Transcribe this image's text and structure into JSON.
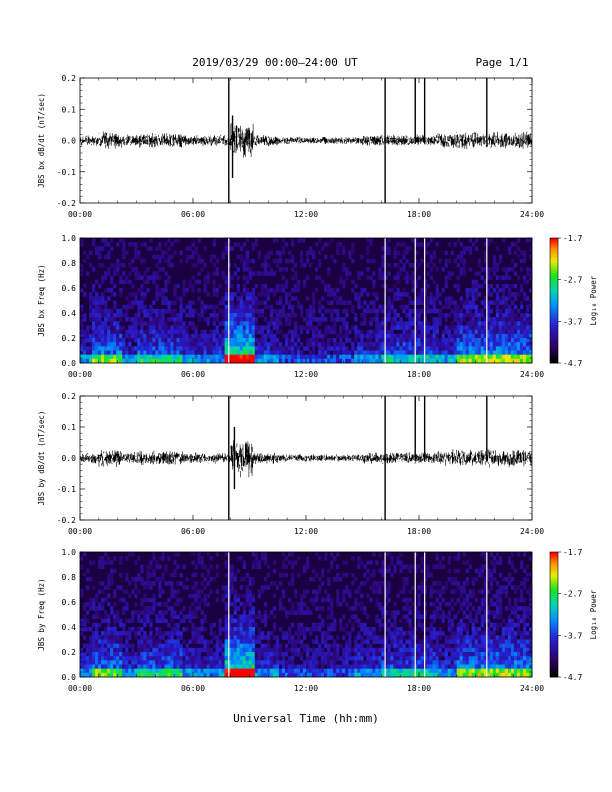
{
  "header": {
    "title": "2019/03/29  00:00–24:00 UT",
    "page": "Page 1/1"
  },
  "xaxis": {
    "label": "Universal Time (hh:mm)",
    "ticks": [
      "00:00",
      "06:00",
      "12:00",
      "18:00",
      "24:00"
    ]
  },
  "colorbar": {
    "label": "Log₁₀ Power",
    "ticks": [
      "-1.7",
      "-2.7",
      "-3.7",
      "-4.7"
    ],
    "colors": [
      "#000000",
      "#2b0060",
      "#1a22d6",
      "#00a8ff",
      "#00d8a0",
      "#20e020",
      "#e8e800",
      "#ff8800",
      "#ff0000"
    ]
  },
  "chart_data": [
    {
      "type": "line",
      "ylabel": "JBS bx dB/dt (nT/sec)",
      "ylim": [
        -0.2,
        0.2
      ],
      "yticks": [
        "0.2",
        "0.1",
        "0.0",
        "-0.1",
        "-0.2"
      ],
      "xlim": [
        0,
        24
      ],
      "x_unit": "hours UT",
      "background_noise_amplitude": 0.02,
      "spikes": [
        {
          "t": 7.9,
          "min": -0.2,
          "max": 0.2
        },
        {
          "t": 8.1,
          "min": -0.12,
          "max": 0.08
        },
        {
          "t": 16.2,
          "min": -0.2,
          "max": 0.2
        },
        {
          "t": 17.8,
          "min": -0.01,
          "max": 0.2
        },
        {
          "t": 18.3,
          "min": -0.01,
          "max": 0.2
        },
        {
          "t": 21.6,
          "min": -0.01,
          "max": 0.2
        }
      ]
    },
    {
      "type": "heatmap",
      "ylabel": "JBS bx Freq (Hz)",
      "ylim": [
        0.0,
        1.0
      ],
      "yticks": [
        "1.0",
        "0.8",
        "0.6",
        "0.4",
        "0.2",
        "0.0"
      ],
      "xlim": [
        0,
        24
      ],
      "zlim": [
        -4.7,
        -1.7
      ],
      "gap_times": [
        7.9,
        16.2,
        17.8,
        18.3,
        21.6
      ]
    },
    {
      "type": "line",
      "ylabel": "JBS by dB/dt (nT/sec)",
      "ylim": [
        -0.2,
        0.2
      ],
      "yticks": [
        "0.2",
        "0.1",
        "0.0",
        "-0.1",
        "-0.2"
      ],
      "xlim": [
        0,
        24
      ],
      "x_unit": "hours UT",
      "background_noise_amplitude": 0.02,
      "spikes": [
        {
          "t": 7.9,
          "min": -0.2,
          "max": 0.2
        },
        {
          "t": 8.2,
          "min": -0.1,
          "max": 0.1
        },
        {
          "t": 16.2,
          "min": -0.2,
          "max": 0.2
        },
        {
          "t": 17.8,
          "min": -0.01,
          "max": 0.2
        },
        {
          "t": 18.3,
          "min": -0.01,
          "max": 0.2
        },
        {
          "t": 21.6,
          "min": -0.01,
          "max": 0.2
        }
      ]
    },
    {
      "type": "heatmap",
      "ylabel": "JBS by Freq (Hz)",
      "ylim": [
        0.0,
        1.0
      ],
      "yticks": [
        "1.0",
        "0.8",
        "0.6",
        "0.4",
        "0.2",
        "0.0"
      ],
      "xlim": [
        0,
        24
      ],
      "zlim": [
        -4.7,
        -1.7
      ],
      "gap_times": [
        7.9,
        16.2,
        17.8,
        18.3,
        21.6
      ]
    }
  ]
}
